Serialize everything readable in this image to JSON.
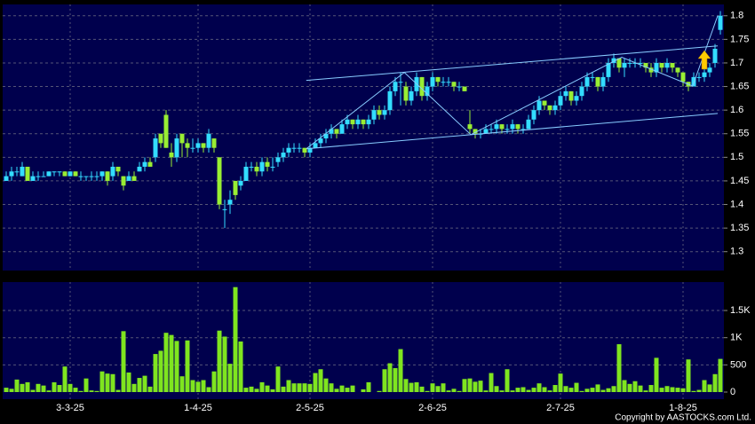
{
  "chart_data": {
    "type": "candlestick",
    "credit": "Copyright by AASTOCKS.com Ltd.",
    "up_color": "#33ddff",
    "down_color": "#99ee33",
    "volume_color": "#7fe51f",
    "trendline_color": "#88ccff",
    "categories": [
      null,
      null,
      null,
      null,
      null,
      null,
      null,
      null,
      null,
      null,
      null,
      null,
      "3-3-25",
      null,
      null,
      null,
      null,
      null,
      null,
      null,
      null,
      null,
      null,
      null,
      null,
      null,
      null,
      null,
      null,
      null,
      null,
      null,
      null,
      null,
      null,
      null,
      "1-4-25",
      null,
      null,
      null,
      null,
      null,
      null,
      null,
      null,
      null,
      null,
      null,
      null,
      null,
      null,
      null,
      null,
      null,
      null,
      null,
      null,
      "2-5-25",
      null,
      null,
      null,
      null,
      null,
      null,
      null,
      null,
      null,
      null,
      null,
      null,
      null,
      null,
      null,
      null,
      null,
      null,
      null,
      null,
      null,
      null,
      "2-6-25",
      null,
      null,
      null,
      null,
      null,
      null,
      null,
      null,
      null,
      null,
      null,
      null,
      null,
      null,
      null,
      null,
      null,
      null,
      null,
      null,
      null,
      null,
      null,
      "2-7-25",
      null,
      null,
      null,
      null,
      null,
      null,
      null,
      null,
      null,
      null,
      null,
      null,
      null,
      null,
      null,
      null,
      null,
      null,
      null,
      null,
      null,
      null,
      "1-8-25",
      null,
      null,
      null,
      null,
      null,
      null,
      null
    ],
    "ohlc": [
      [
        1.45,
        1.47,
        1.45,
        1.46
      ],
      [
        1.46,
        1.48,
        1.45,
        1.47
      ],
      [
        1.47,
        1.48,
        1.46,
        1.47
      ],
      [
        1.46,
        1.49,
        1.46,
        1.48
      ],
      [
        1.48,
        1.48,
        1.45,
        1.45
      ],
      [
        1.45,
        1.47,
        1.45,
        1.46
      ],
      [
        1.46,
        1.47,
        1.45,
        1.46
      ],
      [
        1.46,
        1.47,
        1.46,
        1.46
      ],
      [
        1.46,
        1.47,
        1.46,
        1.47
      ],
      [
        1.47,
        1.47,
        1.46,
        1.47
      ],
      [
        1.47,
        1.47,
        1.46,
        1.47
      ],
      [
        1.47,
        1.47,
        1.46,
        1.46
      ],
      [
        1.46,
        1.47,
        1.46,
        1.47
      ],
      [
        1.47,
        1.47,
        1.46,
        1.46
      ],
      [
        1.46,
        1.47,
        1.45,
        1.46
      ],
      [
        1.46,
        1.46,
        1.45,
        1.46
      ],
      [
        1.46,
        1.47,
        1.45,
        1.46
      ],
      [
        1.46,
        1.47,
        1.45,
        1.46
      ],
      [
        1.46,
        1.47,
        1.45,
        1.47
      ],
      [
        1.47,
        1.47,
        1.44,
        1.45
      ],
      [
        1.46,
        1.49,
        1.45,
        1.48
      ],
      [
        1.48,
        1.48,
        1.46,
        1.47
      ],
      [
        1.46,
        1.46,
        1.43,
        1.44
      ],
      [
        1.45,
        1.47,
        1.45,
        1.46
      ],
      [
        1.46,
        1.47,
        1.45,
        1.45
      ],
      [
        1.47,
        1.49,
        1.47,
        1.48
      ],
      [
        1.48,
        1.5,
        1.47,
        1.49
      ],
      [
        1.49,
        1.5,
        1.48,
        1.48
      ],
      [
        1.5,
        1.55,
        1.49,
        1.54
      ],
      [
        1.55,
        1.55,
        1.52,
        1.53
      ],
      [
        1.59,
        1.6,
        1.52,
        1.52
      ],
      [
        1.51,
        1.53,
        1.48,
        1.5
      ],
      [
        1.5,
        1.55,
        1.49,
        1.54
      ],
      [
        1.55,
        1.55,
        1.5,
        1.53
      ],
      [
        1.53,
        1.54,
        1.5,
        1.52
      ],
      [
        1.52,
        1.54,
        1.51,
        1.52
      ],
      [
        1.52,
        1.54,
        1.51,
        1.53
      ],
      [
        1.53,
        1.53,
        1.51,
        1.52
      ],
      [
        1.52,
        1.56,
        1.51,
        1.55
      ],
      [
        1.54,
        1.54,
        1.51,
        1.52
      ],
      [
        1.5,
        1.5,
        1.39,
        1.4
      ],
      [
        1.39,
        1.41,
        1.35,
        1.39
      ],
      [
        1.4,
        1.43,
        1.38,
        1.41
      ],
      [
        1.45,
        1.45,
        1.41,
        1.42
      ],
      [
        1.44,
        1.46,
        1.43,
        1.45
      ],
      [
        1.45,
        1.49,
        1.45,
        1.48
      ],
      [
        1.48,
        1.49,
        1.47,
        1.48
      ],
      [
        1.48,
        1.49,
        1.46,
        1.47
      ],
      [
        1.47,
        1.5,
        1.46,
        1.49
      ],
      [
        1.49,
        1.5,
        1.47,
        1.48
      ],
      [
        1.48,
        1.5,
        1.47,
        1.48
      ],
      [
        1.49,
        1.51,
        1.48,
        1.5
      ],
      [
        1.5,
        1.52,
        1.49,
        1.51
      ],
      [
        1.51,
        1.53,
        1.5,
        1.52
      ],
      [
        1.52,
        1.53,
        1.51,
        1.52
      ],
      [
        1.52,
        1.53,
        1.51,
        1.52
      ],
      [
        1.52,
        1.52,
        1.5,
        1.51
      ],
      [
        1.51,
        1.53,
        1.5,
        1.52
      ],
      [
        1.52,
        1.54,
        1.52,
        1.53
      ],
      [
        1.53,
        1.55,
        1.52,
        1.54
      ],
      [
        1.54,
        1.56,
        1.53,
        1.55
      ],
      [
        1.55,
        1.57,
        1.54,
        1.56
      ],
      [
        1.56,
        1.56,
        1.54,
        1.55
      ],
      [
        1.55,
        1.58,
        1.55,
        1.57
      ],
      [
        1.57,
        1.59,
        1.56,
        1.58
      ],
      [
        1.58,
        1.58,
        1.56,
        1.57
      ],
      [
        1.57,
        1.59,
        1.56,
        1.58
      ],
      [
        1.58,
        1.58,
        1.56,
        1.57
      ],
      [
        1.57,
        1.59,
        1.56,
        1.58
      ],
      [
        1.58,
        1.61,
        1.57,
        1.6
      ],
      [
        1.6,
        1.61,
        1.58,
        1.59
      ],
      [
        1.59,
        1.61,
        1.58,
        1.6
      ],
      [
        1.6,
        1.65,
        1.59,
        1.64
      ],
      [
        1.64,
        1.67,
        1.63,
        1.66
      ],
      [
        1.66,
        1.68,
        1.61,
        1.66
      ],
      [
        1.65,
        1.66,
        1.61,
        1.62
      ],
      [
        1.62,
        1.65,
        1.61,
        1.64
      ],
      [
        1.64,
        1.68,
        1.63,
        1.67
      ],
      [
        1.67,
        1.67,
        1.62,
        1.63
      ],
      [
        1.63,
        1.66,
        1.62,
        1.65
      ],
      [
        1.65,
        1.68,
        1.64,
        1.67
      ],
      [
        1.67,
        1.67,
        1.65,
        1.66
      ],
      [
        1.66,
        1.67,
        1.65,
        1.66
      ],
      [
        1.66,
        1.67,
        1.65,
        1.66
      ],
      [
        1.66,
        1.66,
        1.64,
        1.65
      ],
      [
        1.65,
        1.66,
        1.64,
        1.65
      ],
      [
        1.65,
        1.65,
        1.64,
        1.64
      ],
      [
        1.57,
        1.6,
        1.55,
        1.56
      ],
      [
        1.56,
        1.56,
        1.54,
        1.55
      ],
      [
        1.55,
        1.56,
        1.54,
        1.55
      ],
      [
        1.55,
        1.57,
        1.55,
        1.56
      ],
      [
        1.56,
        1.57,
        1.55,
        1.56
      ],
      [
        1.56,
        1.58,
        1.55,
        1.57
      ],
      [
        1.57,
        1.57,
        1.55,
        1.56
      ],
      [
        1.56,
        1.57,
        1.55,
        1.56
      ],
      [
        1.56,
        1.58,
        1.55,
        1.57
      ],
      [
        1.57,
        1.57,
        1.55,
        1.56
      ],
      [
        1.56,
        1.57,
        1.55,
        1.56
      ],
      [
        1.56,
        1.59,
        1.56,
        1.58
      ],
      [
        1.58,
        1.61,
        1.57,
        1.6
      ],
      [
        1.6,
        1.63,
        1.59,
        1.62
      ],
      [
        1.62,
        1.62,
        1.6,
        1.61
      ],
      [
        1.61,
        1.61,
        1.59,
        1.6
      ],
      [
        1.6,
        1.62,
        1.59,
        1.61
      ],
      [
        1.61,
        1.64,
        1.6,
        1.63
      ],
      [
        1.63,
        1.65,
        1.62,
        1.64
      ],
      [
        1.64,
        1.64,
        1.61,
        1.62
      ],
      [
        1.62,
        1.64,
        1.61,
        1.63
      ],
      [
        1.63,
        1.66,
        1.62,
        1.65
      ],
      [
        1.65,
        1.68,
        1.64,
        1.67
      ],
      [
        1.67,
        1.68,
        1.66,
        1.67
      ],
      [
        1.67,
        1.67,
        1.64,
        1.65
      ],
      [
        1.65,
        1.68,
        1.64,
        1.67
      ],
      [
        1.67,
        1.71,
        1.66,
        1.7
      ],
      [
        1.7,
        1.72,
        1.69,
        1.71
      ],
      [
        1.71,
        1.71,
        1.68,
        1.69
      ],
      [
        1.69,
        1.71,
        1.67,
        1.7
      ],
      [
        1.7,
        1.71,
        1.69,
        1.7
      ],
      [
        1.7,
        1.71,
        1.69,
        1.7
      ],
      [
        1.7,
        1.71,
        1.69,
        1.7
      ],
      [
        1.7,
        1.7,
        1.68,
        1.69
      ],
      [
        1.69,
        1.7,
        1.67,
        1.68
      ],
      [
        1.68,
        1.71,
        1.67,
        1.7
      ],
      [
        1.7,
        1.7,
        1.68,
        1.69
      ],
      [
        1.69,
        1.71,
        1.68,
        1.7
      ],
      [
        1.7,
        1.7,
        1.68,
        1.69
      ],
      [
        1.69,
        1.69,
        1.67,
        1.68
      ],
      [
        1.68,
        1.68,
        1.65,
        1.66
      ],
      [
        1.66,
        1.66,
        1.64,
        1.65
      ],
      [
        1.65,
        1.68,
        1.65,
        1.67
      ],
      [
        1.67,
        1.68,
        1.66,
        1.67
      ],
      [
        1.67,
        1.69,
        1.66,
        1.68
      ],
      [
        1.68,
        1.7,
        1.67,
        1.69
      ],
      [
        1.7,
        1.74,
        1.69,
        1.73
      ],
      [
        1.77,
        1.81,
        1.76,
        1.8
      ]
    ],
    "volume": [
      80,
      60,
      230,
      150,
      180,
      40,
      150,
      120,
      30,
      180,
      130,
      470,
      150,
      80,
      20,
      250,
      30,
      20,
      380,
      340,
      330,
      40,
      1120,
      360,
      150,
      260,
      300,
      100,
      700,
      760,
      1090,
      1050,
      940,
      290,
      950,
      220,
      190,
      220,
      90,
      380,
      1130,
      1020,
      520,
      1930,
      930,
      80,
      100,
      60,
      180,
      120,
      50,
      470,
      100,
      220,
      160,
      160,
      160,
      150,
      350,
      420,
      250,
      160,
      60,
      120,
      80,
      120,
      0,
      50,
      180,
      0,
      20,
      420,
      530,
      440,
      790,
      240,
      170,
      180,
      100,
      20,
      160,
      110,
      160,
      30,
      60,
      20,
      240,
      250,
      190,
      210,
      30,
      350,
      110,
      30,
      420,
      30,
      80,
      90,
      40,
      80,
      160,
      90,
      30,
      130,
      340,
      110,
      80,
      170,
      20,
      60,
      80,
      140,
      40,
      70,
      110,
      880,
      220,
      150,
      200,
      120,
      30,
      130,
      630,
      80,
      110,
      90,
      80,
      70,
      600,
      20,
      40,
      220,
      140,
      330,
      610
    ],
    "ylim": [
      1.26,
      1.824
    ],
    "yticks": [
      1.3,
      1.35,
      1.4,
      1.45,
      1.5,
      1.55,
      1.6,
      1.65,
      1.7,
      1.75,
      1.8
    ],
    "volume_ylim": [
      0,
      1990
    ],
    "volume_ticks": [
      0,
      500,
      {
        "value": 1000,
        "label": "1K"
      },
      {
        "value": 1500,
        "label": "1.5K"
      }
    ],
    "trendlines": [
      {
        "x": [
          56.3,
          133.5
        ],
        "y": [
          1.663,
          1.736
        ]
      },
      {
        "x": [
          56.3,
          133.5
        ],
        "y": [
          1.518,
          1.593
        ]
      },
      {
        "x": [
          56.3,
          74.7,
          87.2,
          115.5,
          128.8,
          133.5
        ],
        "y": [
          1.518,
          1.68,
          1.548,
          1.712,
          1.651,
          1.8
        ]
      }
    ],
    "grid": true
  }
}
